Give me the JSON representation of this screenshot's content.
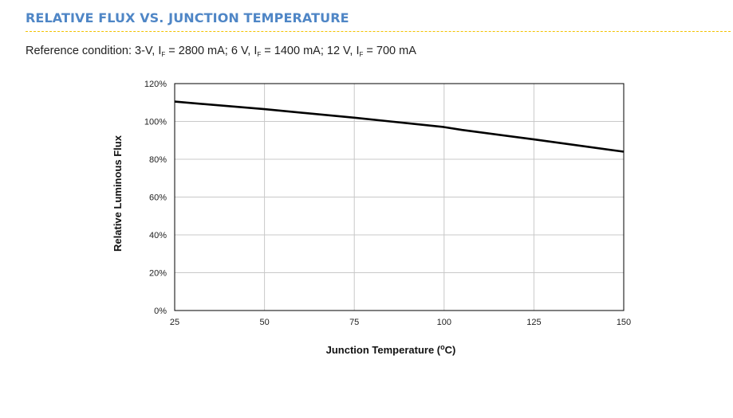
{
  "header": {
    "title": "RELATIVE FLUX VS. JUNCTION TEMPERATURE",
    "accent_color": "#4f86c6",
    "rule_color": "#f2c200"
  },
  "reference": {
    "prefix": "Reference condition: 3-V, I",
    "sub1": "F",
    "part2": " = 2800 mA; 6 V, I",
    "sub2": "F",
    "part3": " = 1400 mA; 12 V, I",
    "sub3": "F",
    "part4": " = 700 mA"
  },
  "chart_data": {
    "type": "line",
    "title": "",
    "xlabel_text": "Junction Temperature (",
    "xlabel_sup": "o",
    "xlabel_unit": "C)",
    "ylabel": "Relative Luminous Flux",
    "xlim": [
      25,
      150
    ],
    "ylim": [
      0,
      120
    ],
    "xticks": [
      25,
      50,
      75,
      100,
      125,
      150
    ],
    "yticks": [
      0,
      20,
      40,
      60,
      80,
      100,
      120
    ],
    "ytick_suffix": "%",
    "grid": true,
    "series": [
      {
        "color": "#000000",
        "x": [
          25,
          50,
          75,
          85,
          100,
          105,
          125,
          150
        ],
        "y": [
          110.5,
          106.5,
          102,
          100,
          97,
          95.5,
          90.5,
          84
        ]
      }
    ]
  }
}
